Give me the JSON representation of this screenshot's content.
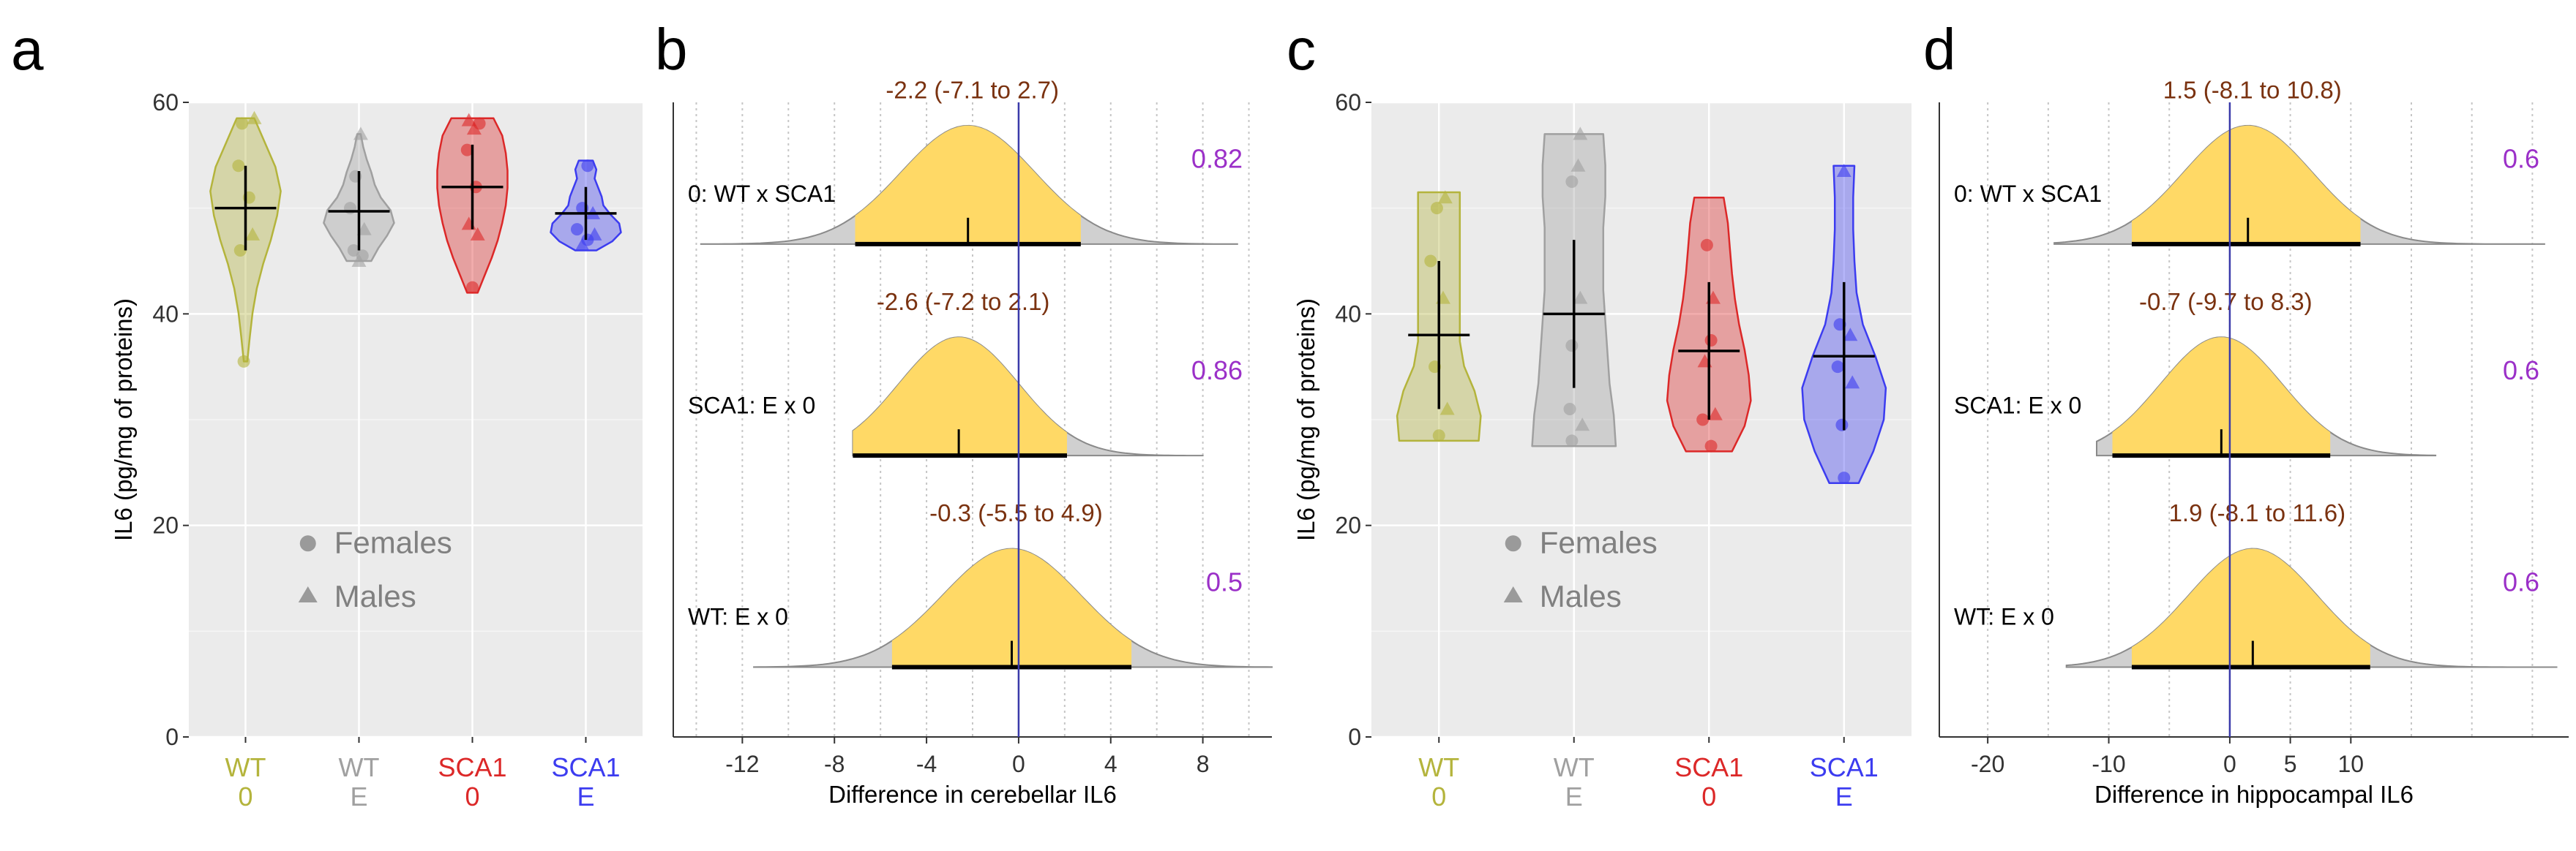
{
  "panels": {
    "a": "a",
    "b": "b",
    "c": "c",
    "d": "d"
  },
  "colors": {
    "wt0": "#b4b43c",
    "wtE": "#a0a0a0",
    "sca0": "#dc2828",
    "scaE": "#3c3cf0",
    "dist_fill": "#ffd966",
    "dist_tail": "#d0d0d0",
    "pval": "#9b30c8",
    "ci_text": "#7a3210",
    "zero_line": "#3a3aaa",
    "panel_bg": "#ebebeb"
  },
  "legend": {
    "females": "Females",
    "males": "Males"
  },
  "chart_data": [
    {
      "id": "a",
      "type": "violin",
      "ylabel": "IL6 (pg/mg of proteins)",
      "ylim": [
        0,
        60
      ],
      "yticks": [
        "0",
        "20",
        "40",
        "60"
      ],
      "groups": [
        {
          "label1": "WT",
          "label2": "0",
          "color_key": "wt0",
          "min": 35.5,
          "max": 58.5,
          "mean": 50,
          "ci": [
            46,
            54
          ],
          "profile": [
            0.05,
            0.12,
            0.2,
            0.32,
            0.5,
            0.72,
            0.9,
            1.0,
            0.85,
            0.55,
            0.25
          ],
          "points": [
            {
              "v": 58.5,
              "s": "tri",
              "dx": 0.25
            },
            {
              "v": 58,
              "s": "circ",
              "dx": -0.1
            },
            {
              "v": 54,
              "s": "circ",
              "dx": -0.2
            },
            {
              "v": 51,
              "s": "circ",
              "dx": 0.1
            },
            {
              "v": 47.5,
              "s": "tri",
              "dx": 0.2
            },
            {
              "v": 46,
              "s": "circ",
              "dx": -0.15
            },
            {
              "v": 35.5,
              "s": "circ",
              "dx": -0.05
            }
          ]
        },
        {
          "label1": "WT",
          "label2": "E",
          "color_key": "wtE",
          "min": 45,
          "max": 57,
          "mean": 49.7,
          "ci": [
            46,
            53.5
          ],
          "profile": [
            0.35,
            0.55,
            0.8,
            1.0,
            0.9,
            0.62,
            0.45,
            0.35,
            0.22,
            0.12,
            0.05
          ],
          "points": [
            {
              "v": 57,
              "s": "tri",
              "dx": 0.05
            },
            {
              "v": 53,
              "s": "circ",
              "dx": -0.1
            },
            {
              "v": 50,
              "s": "circ",
              "dx": -0.25
            },
            {
              "v": 48,
              "s": "tri",
              "dx": 0.15
            },
            {
              "v": 46,
              "s": "circ",
              "dx": -0.15
            },
            {
              "v": 45.5,
              "s": "circ",
              "dx": 0.1
            },
            {
              "v": 45,
              "s": "tri",
              "dx": 0.0
            }
          ]
        },
        {
          "label1": "SCA1",
          "label2": "0",
          "color_key": "sca0",
          "min": 42,
          "max": 58.5,
          "mean": 52,
          "ci": [
            48,
            56
          ],
          "profile": [
            0.15,
            0.35,
            0.55,
            0.72,
            0.85,
            0.95,
            1.0,
            1.0,
            0.95,
            0.85,
            0.6
          ],
          "points": [
            {
              "v": 58.3,
              "s": "tri",
              "dx": -0.1
            },
            {
              "v": 58,
              "s": "circ",
              "dx": 0.2
            },
            {
              "v": 57.5,
              "s": "tri",
              "dx": 0.05
            },
            {
              "v": 55.5,
              "s": "circ",
              "dx": -0.15
            },
            {
              "v": 52,
              "s": "circ",
              "dx": 0.1
            },
            {
              "v": 48.5,
              "s": "tri",
              "dx": -0.1
            },
            {
              "v": 47.5,
              "s": "tri",
              "dx": 0.15
            },
            {
              "v": 42.5,
              "s": "circ",
              "dx": 0.0
            }
          ]
        },
        {
          "label1": "SCA1",
          "label2": "E",
          "color_key": "scaE",
          "min": 46,
          "max": 54.5,
          "mean": 49.5,
          "ci": [
            47,
            52
          ],
          "profile": [
            0.3,
            0.75,
            1.0,
            0.95,
            0.7,
            0.5,
            0.45,
            0.35,
            0.25,
            0.3,
            0.2
          ],
          "points": [
            {
              "v": 54,
              "s": "circ",
              "dx": 0.05
            },
            {
              "v": 50,
              "s": "circ",
              "dx": -0.1
            },
            {
              "v": 49.5,
              "s": "tri",
              "dx": 0.2
            },
            {
              "v": 48,
              "s": "circ",
              "dx": -0.25
            },
            {
              "v": 47.5,
              "s": "tri",
              "dx": 0.25
            },
            {
              "v": 47,
              "s": "circ",
              "dx": 0.05
            },
            {
              "v": 46.5,
              "s": "tri",
              "dx": -0.1
            }
          ]
        }
      ]
    },
    {
      "id": "b",
      "type": "posterior-distributions",
      "xlabel": "Difference in cerebellar IL6",
      "xlim": [
        -15,
        11
      ],
      "xticks": [
        "-12",
        "-8",
        "-4",
        "0",
        "4",
        "8"
      ],
      "rows": [
        {
          "label": "0: WT x SCA1",
          "ci_text": "-2.2 (-7.1 to 2.7)",
          "pval": "0.82",
          "mean": -2.2,
          "lo": -7.1,
          "hi": 2.7,
          "tmin": -13.8,
          "tmax": 9.5,
          "sd": 2.9
        },
        {
          "label": "SCA1: E x 0",
          "ci_text": "-2.6 (-7.2 to 2.1)",
          "pval": "0.86",
          "mean": -2.6,
          "lo": -7.2,
          "hi": 2.1,
          "tmin": -7.2,
          "tmax": 8.0,
          "sd": 2.6
        },
        {
          "label": "WT: E x 0",
          "ci_text": "-0.3 (-5.5 to 4.9)",
          "pval": "0.5",
          "mean": -0.3,
          "lo": -5.5,
          "hi": 4.9,
          "tmin": -11.5,
          "tmax": 11.0,
          "sd": 3.0
        }
      ]
    },
    {
      "id": "c",
      "type": "violin",
      "ylabel": "IL6 (pg/mg of proteins)",
      "ylim": [
        0,
        60
      ],
      "yticks": [
        "0",
        "20",
        "40",
        "60"
      ],
      "groups": [
        {
          "label1": "WT",
          "label2": "0",
          "color_key": "wt0",
          "min": 28,
          "max": 51.5,
          "mean": 38,
          "ci": [
            31,
            45
          ],
          "profile": [
            0.95,
            1.0,
            0.85,
            0.6,
            0.5,
            0.5,
            0.5,
            0.5,
            0.5,
            0.5,
            0.5
          ],
          "points": [
            {
              "v": 51,
              "s": "tri",
              "dx": 0.15
            },
            {
              "v": 50,
              "s": "circ",
              "dx": -0.05
            },
            {
              "v": 45,
              "s": "circ",
              "dx": -0.2
            },
            {
              "v": 41.5,
              "s": "tri",
              "dx": 0.1
            },
            {
              "v": 35,
              "s": "circ",
              "dx": -0.1
            },
            {
              "v": 31,
              "s": "tri",
              "dx": 0.2
            },
            {
              "v": 28.5,
              "s": "circ",
              "dx": 0.0
            }
          ]
        },
        {
          "label1": "WT",
          "label2": "E",
          "color_key": "wtE",
          "min": 27.5,
          "max": 57,
          "mean": 40,
          "ci": [
            33,
            47
          ],
          "profile": [
            1.0,
            0.95,
            0.85,
            0.8,
            0.75,
            0.7,
            0.7,
            0.7,
            0.75,
            0.75,
            0.7
          ],
          "points": [
            {
              "v": 57,
              "s": "tri",
              "dx": 0.15
            },
            {
              "v": 54,
              "s": "tri",
              "dx": 0.1
            },
            {
              "v": 52.5,
              "s": "circ",
              "dx": -0.05
            },
            {
              "v": 41.5,
              "s": "tri",
              "dx": 0.15
            },
            {
              "v": 37,
              "s": "circ",
              "dx": -0.05
            },
            {
              "v": 31,
              "s": "circ",
              "dx": -0.1
            },
            {
              "v": 29.5,
              "s": "tri",
              "dx": 0.2
            },
            {
              "v": 28,
              "s": "circ",
              "dx": -0.05
            }
          ]
        },
        {
          "label1": "SCA1",
          "label2": "0",
          "color_key": "sca0",
          "min": 27,
          "max": 51,
          "mean": 36.5,
          "ci": [
            30,
            43
          ],
          "profile": [
            0.55,
            0.85,
            1.0,
            0.95,
            0.85,
            0.72,
            0.62,
            0.55,
            0.5,
            0.45,
            0.35
          ],
          "points": [
            {
              "v": 46.5,
              "s": "circ",
              "dx": -0.05
            },
            {
              "v": 41.5,
              "s": "tri",
              "dx": 0.1
            },
            {
              "v": 37.5,
              "s": "circ",
              "dx": 0.05
            },
            {
              "v": 35.5,
              "s": "tri",
              "dx": -0.1
            },
            {
              "v": 30.5,
              "s": "tri",
              "dx": 0.15
            },
            {
              "v": 30,
              "s": "circ",
              "dx": -0.15
            },
            {
              "v": 27.5,
              "s": "circ",
              "dx": 0.05
            }
          ]
        },
        {
          "label1": "SCA1",
          "label2": "E",
          "color_key": "scaE",
          "min": 24,
          "max": 54,
          "mean": 36,
          "ci": [
            29,
            43
          ],
          "profile": [
            0.35,
            0.7,
            0.95,
            1.0,
            0.75,
            0.45,
            0.3,
            0.25,
            0.22,
            0.22,
            0.25
          ],
          "points": [
            {
              "v": 53.5,
              "s": "tri",
              "dx": 0.0
            },
            {
              "v": 39,
              "s": "circ",
              "dx": -0.1
            },
            {
              "v": 38,
              "s": "tri",
              "dx": 0.15
            },
            {
              "v": 35,
              "s": "circ",
              "dx": -0.15
            },
            {
              "v": 33.5,
              "s": "tri",
              "dx": 0.2
            },
            {
              "v": 29.5,
              "s": "circ",
              "dx": -0.05
            },
            {
              "v": 24.5,
              "s": "circ",
              "dx": 0.0
            }
          ]
        }
      ]
    },
    {
      "id": "d",
      "type": "posterior-distributions",
      "xlabel": "Difference in hippocampal IL6",
      "xlim": [
        -24,
        28
      ],
      "xticks": [
        "-20",
        "-10",
        "0",
        "5",
        "10"
      ],
      "rows": [
        {
          "label": "0: WT x SCA1",
          "ci_text": "1.5 (-8.1 to 10.8)",
          "pval": "0.6",
          "mean": 1.5,
          "lo": -8.1,
          "hi": 10.8,
          "tmin": -14.5,
          "tmax": 26.0,
          "sd": 5.3
        },
        {
          "label": "SCA1: E x 0",
          "ci_text": "-0.7 (-9.7 to 8.3)",
          "pval": "0.6",
          "mean": -0.7,
          "lo": -9.7,
          "hi": 8.3,
          "tmin": -11.0,
          "tmax": 17.0,
          "sd": 5.0
        },
        {
          "label": "WT: E x 0",
          "ci_text": "1.9 (-8.1 to 11.6)",
          "pval": "0.6",
          "mean": 1.9,
          "lo": -8.1,
          "hi": 11.6,
          "tmin": -13.5,
          "tmax": 27.0,
          "sd": 5.3
        }
      ]
    }
  ]
}
